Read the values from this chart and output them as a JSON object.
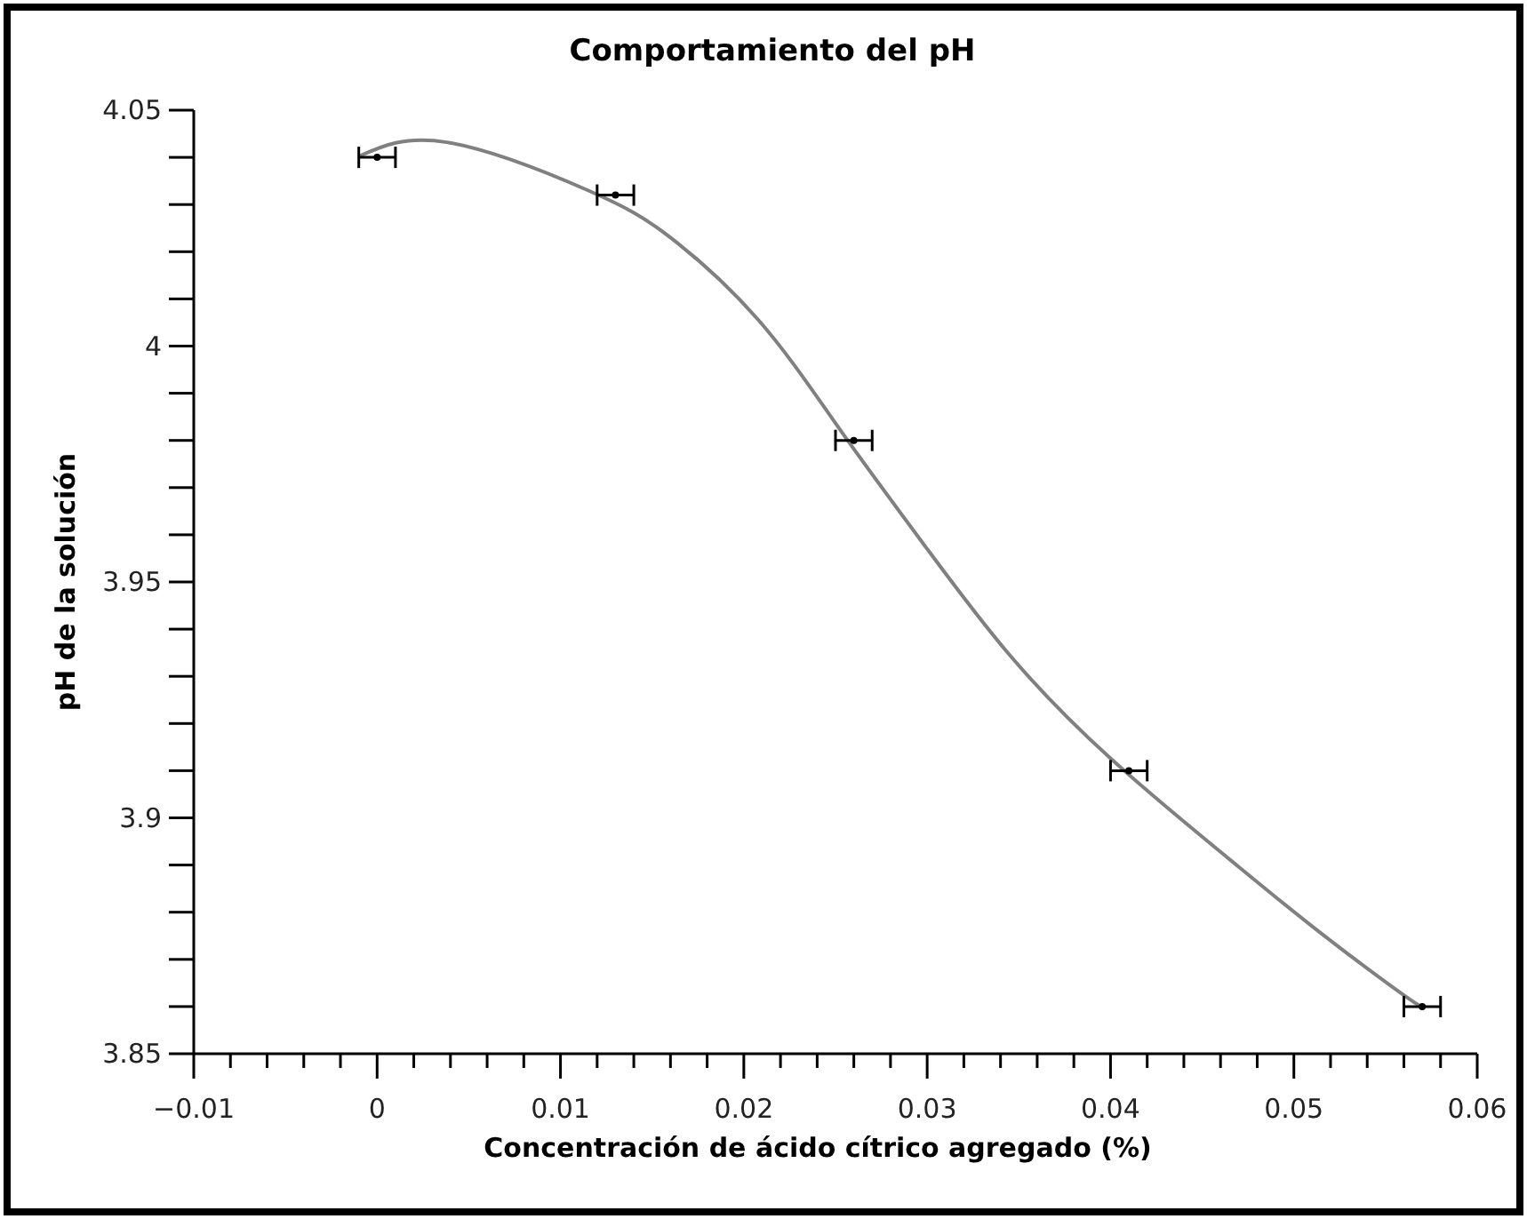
{
  "chart_data": {
    "type": "scatter",
    "title": "Comportamiento del pH",
    "xlabel": "Concentración de ácido cítrico agregado (%)",
    "ylabel": "pH de la solución",
    "xlim": [
      -0.01,
      0.06
    ],
    "ylim": [
      3.85,
      4.05
    ],
    "xticks": [
      -0.01,
      {
        "value": -0.008,
        "label": null
      },
      {
        "value": -0.006,
        "label": null
      },
      {
        "value": -0.004,
        "label": null
      },
      {
        "value": -0.002,
        "label": null
      },
      0,
      {
        "value": 0.002,
        "label": null
      },
      {
        "value": 0.004,
        "label": null
      },
      {
        "value": 0.006,
        "label": null
      },
      {
        "value": 0.008,
        "label": null
      },
      0.01,
      {
        "value": 0.012,
        "label": null
      },
      {
        "value": 0.014,
        "label": null
      },
      {
        "value": 0.016,
        "label": null
      },
      {
        "value": 0.018,
        "label": null
      },
      0.02,
      {
        "value": 0.022,
        "label": null
      },
      {
        "value": 0.024,
        "label": null
      },
      {
        "value": 0.026,
        "label": null
      },
      {
        "value": 0.028,
        "label": null
      },
      0.03,
      {
        "value": 0.032,
        "label": null
      },
      {
        "value": 0.034,
        "label": null
      },
      {
        "value": 0.036,
        "label": null
      },
      {
        "value": 0.038,
        "label": null
      },
      0.04,
      {
        "value": 0.042,
        "label": null
      },
      {
        "value": 0.044,
        "label": null
      },
      {
        "value": 0.046,
        "label": null
      },
      {
        "value": 0.048,
        "label": null
      },
      0.05,
      {
        "value": 0.052,
        "label": null
      },
      {
        "value": 0.054,
        "label": null
      },
      {
        "value": 0.056,
        "label": null
      },
      {
        "value": 0.058,
        "label": null
      },
      0.06
    ],
    "yticks": [
      3.85,
      {
        "value": 3.86,
        "label": null
      },
      {
        "value": 3.87,
        "label": null
      },
      {
        "value": 3.88,
        "label": null
      },
      {
        "value": 3.89,
        "label": null
      },
      3.9,
      {
        "value": 3.91,
        "label": null
      },
      {
        "value": 3.92,
        "label": null
      },
      {
        "value": 3.93,
        "label": null
      },
      {
        "value": 3.94,
        "label": null
      },
      3.95,
      {
        "value": 3.96,
        "label": null
      },
      {
        "value": 3.97,
        "label": null
      },
      {
        "value": 3.98,
        "label": null
      },
      {
        "value": 3.99,
        "label": null
      },
      4,
      {
        "value": 4.01,
        "label": null
      },
      {
        "value": 4.02,
        "label": null
      },
      {
        "value": 4.03,
        "label": null
      },
      {
        "value": 4.04,
        "label": null
      },
      4.05
    ],
    "grid": false,
    "marker": "circle",
    "series": [
      {
        "type": "line",
        "color": "#808080",
        "x": [
          -0.001,
          0.0038,
          0.0115,
          0.016,
          0.0208,
          0.0253,
          0.03,
          0.0345,
          0.04,
          0.0464,
          0.0512,
          0.056,
          0.0571
        ],
        "values": [
          4.0402,
          4.0432,
          4.033,
          4.023,
          4.0055,
          3.982,
          3.957,
          3.9345,
          3.9126,
          3.8915,
          3.8764,
          3.8624,
          3.86
        ],
        "marker": "none",
        "line_style": "solid"
      },
      {
        "color": "#000000",
        "x": [
          0,
          0.013,
          0.026,
          0.041,
          0.057
        ],
        "values": [
          4.04,
          4.032,
          3.98,
          3.91,
          3.86
        ],
        "xerrors": [
          0.001,
          0.001,
          0.001,
          0.001,
          0.001
        ]
      }
    ]
  }
}
